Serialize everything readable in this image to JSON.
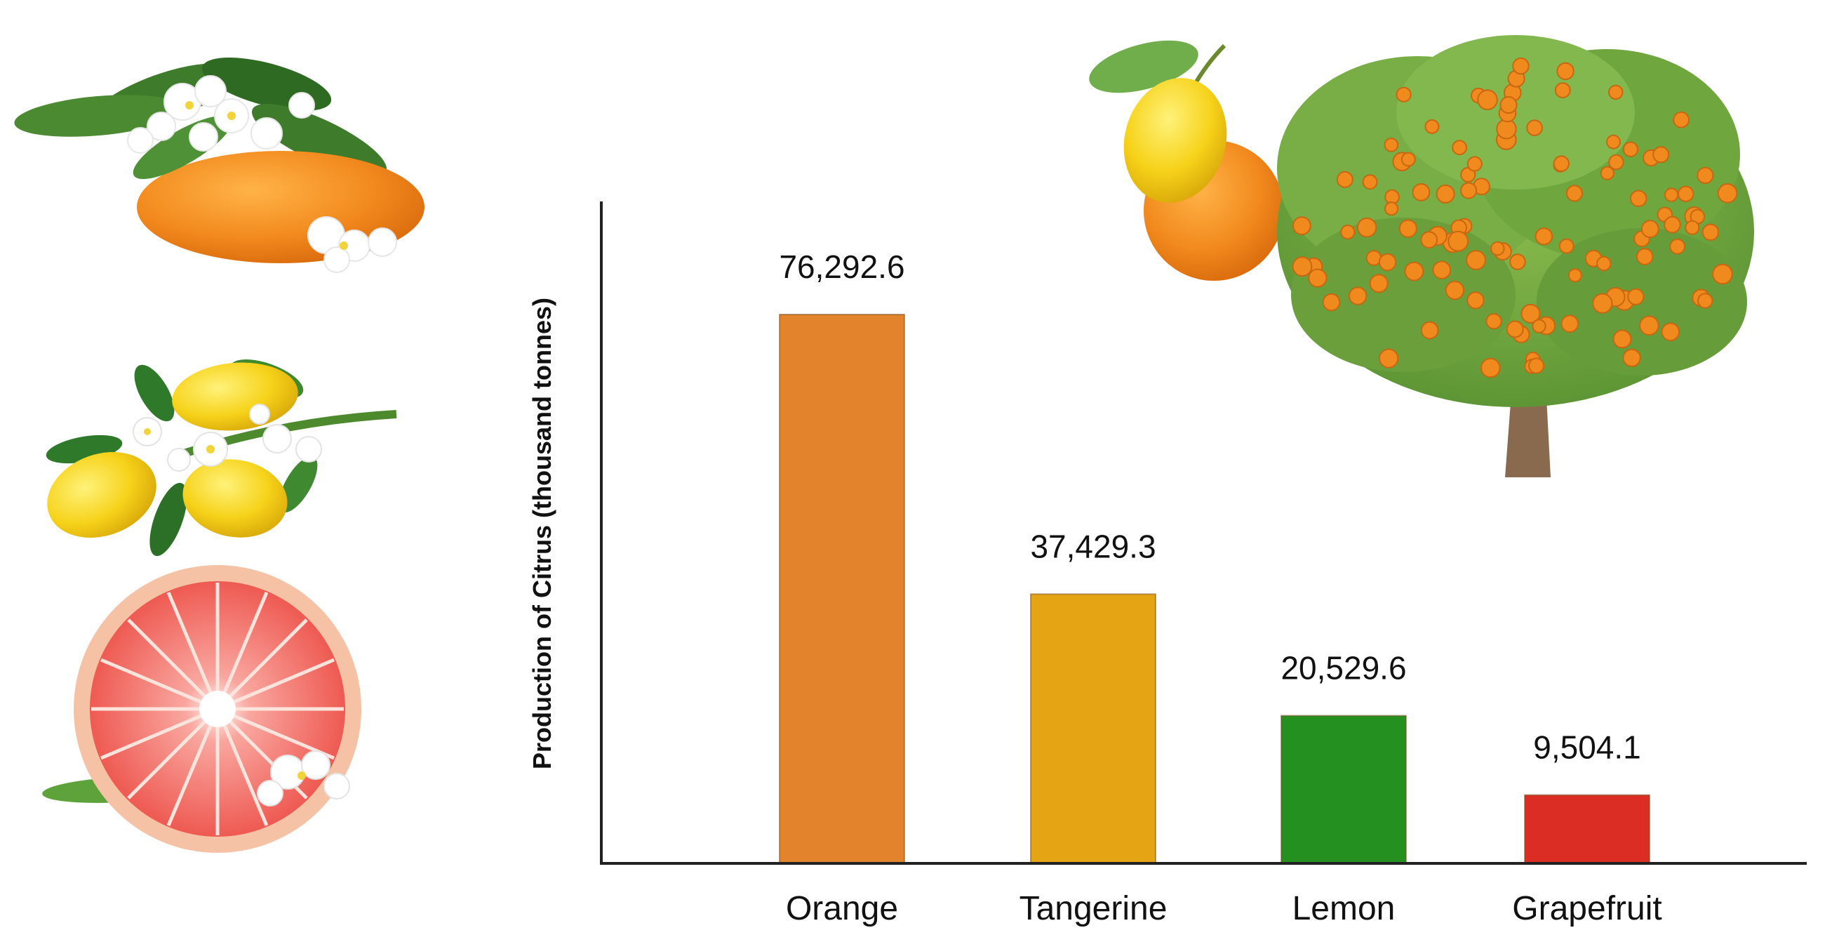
{
  "chart_data": {
    "type": "bar",
    "title": "",
    "xlabel": "",
    "ylabel": "Production of Citrus (thousand tonnes)",
    "categories": [
      "Orange",
      "Tangerine",
      "Lemon",
      "Grapefruit"
    ],
    "values": [
      76292.6,
      37429.3,
      20529.6,
      9504.1
    ],
    "value_labels": [
      "76,292.6",
      "37,429.3",
      "20,529.6",
      "9,504.1"
    ],
    "colors": [
      "#E3832B",
      "#E5A414",
      "#24901F",
      "#DB2D24"
    ],
    "ylim": [
      0,
      92000
    ],
    "grid": false,
    "legend": "none"
  },
  "illustrations": [
    "orange-blossom-icon",
    "lemon-branch-icon",
    "grapefruit-slice-icon",
    "lemon-orange-icon",
    "orange-tree-icon"
  ]
}
